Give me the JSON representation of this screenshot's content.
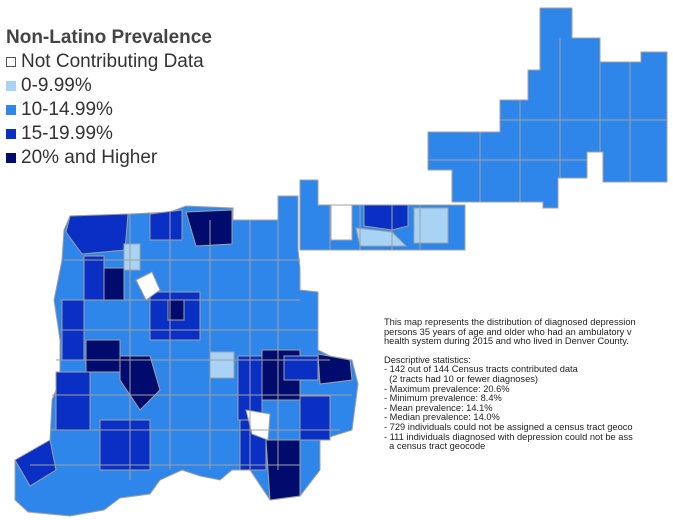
{
  "legend": {
    "title": "Non-Latino Prevalence",
    "items": [
      {
        "label": "Not Contributing Data",
        "color": "#ffffff"
      },
      {
        "label": "0-9.99%",
        "color": "#a9d3f5"
      },
      {
        "label": "10-14.99%",
        "color": "#2f86ea"
      },
      {
        "label": "15-19.99%",
        "color": "#0a2fc4"
      },
      {
        "label": "20% and Higher",
        "color": "#000b6e"
      }
    ]
  },
  "description": {
    "intro": [
      "This map represents the distribution of diagnosed depression",
      "persons 35 years of age and older who had an ambulatory v",
      "health system during 2015 and who lived in Denver County."
    ],
    "stats_heading": "Descriptive statistics:",
    "stats": [
      "- 142 out of 144 Census tracts contributed data",
      "  (2 tracts had 10 or fewer diagnoses)",
      "- Maximum prevalence: 20.6%",
      "- Minimum prevalence: 8.4%",
      "- Mean prevalence: 14.1%",
      "- Median prevalence: 14.0%",
      "- 729 individuals could not be assigned a census tract geoco",
      "- 111 individuals diagnosed with depression could not be ass",
      "  a census tract geocode"
    ]
  },
  "map": {
    "county": "Denver County",
    "colors": {
      "border": "#a0a0a0",
      "not_contributing": "#ffffff",
      "low": "#a9d3f5",
      "mid": "#2f86ea",
      "high": "#0a2fc4",
      "highest": "#000b6e"
    }
  }
}
